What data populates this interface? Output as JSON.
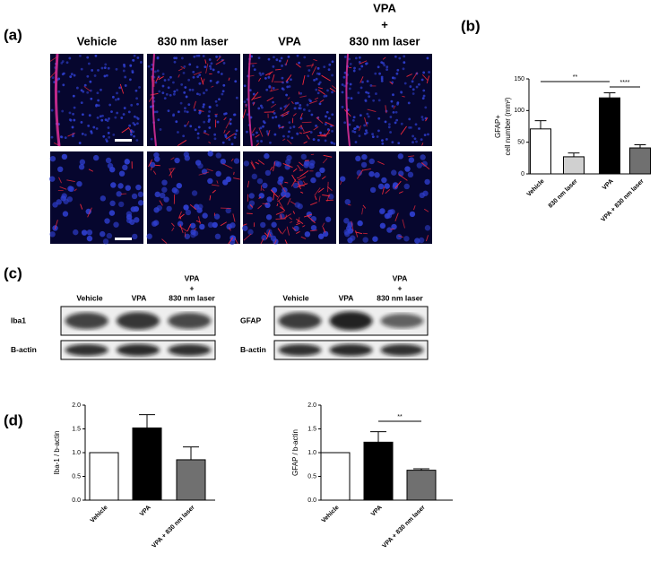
{
  "figure": {
    "panel_a": {
      "label": "(a)",
      "columns": [
        [
          "Vehicle"
        ],
        [
          "830 nm laser"
        ],
        [
          "VPA"
        ],
        [
          "VPA",
          "+",
          "830 nm laser"
        ]
      ]
    },
    "panel_b": {
      "label": "(b)"
    },
    "panel_c": {
      "label": "(c)",
      "blots": [
        {
          "columns": [
            [
              "Vehicle"
            ],
            [
              "VPA"
            ],
            [
              "VPA",
              "+",
              "830 nm laser"
            ]
          ],
          "rows": [
            "Iba1",
            "B-actin"
          ]
        },
        {
          "columns": [
            [
              "Vehicle"
            ],
            [
              "VPA"
            ],
            [
              "VPA",
              "+",
              "830 nm laser"
            ]
          ],
          "rows": [
            "GFAP",
            "B-actin"
          ]
        }
      ]
    },
    "panel_d": {
      "label": "(d)"
    }
  },
  "chart_data": [
    {
      "type": "bar",
      "ylabel": [
        "GFAP+",
        "cell number (mm²)"
      ],
      "categories": [
        "Vehicle",
        "830 nm laser",
        "VPA",
        "VPA + 830 nm laser"
      ],
      "values": [
        71,
        27,
        120,
        41
      ],
      "errors": [
        13,
        6,
        8,
        5
      ],
      "colors": [
        "#ffffff",
        "#d0d0d0",
        "#000000",
        "#707070"
      ],
      "ylim": [
        0,
        150
      ],
      "yticks": [
        0,
        50,
        100,
        150
      ],
      "annotations": [
        "**",
        "****"
      ]
    },
    {
      "type": "bar",
      "ylabel": [
        "Iba-1 / b-actin"
      ],
      "categories": [
        "Vehicle",
        "VPA",
        "VPA + 830 nm laser"
      ],
      "values": [
        1.0,
        1.52,
        0.85
      ],
      "errors": [
        null,
        0.28,
        0.27
      ],
      "colors": [
        "#ffffff",
        "#000000",
        "#707070"
      ],
      "ylim": [
        0,
        2.0
      ],
      "yticks": [
        {
          "value": 0,
          "label": "0.0"
        },
        {
          "value": 0.5,
          "label": "0.5"
        },
        {
          "value": 1,
          "label": "1.0"
        },
        {
          "value": 1.5,
          "label": "1.5"
        },
        {
          "value": 2,
          "label": "2.0"
        }
      ],
      "annotations": []
    },
    {
      "type": "bar",
      "ylabel": [
        "GFAP / b-actin"
      ],
      "categories": [
        "Vehicle",
        "VPA",
        "VPA + 830 nm laser"
      ],
      "values": [
        1.0,
        1.22,
        0.63
      ],
      "errors": [
        null,
        0.22,
        0.03
      ],
      "colors": [
        "#ffffff",
        "#000000",
        "#707070"
      ],
      "ylim": [
        0,
        2.0
      ],
      "yticks": [
        {
          "value": 0,
          "label": "0.0"
        },
        {
          "value": 0.5,
          "label": "0.5"
        },
        {
          "value": 1,
          "label": "1.0"
        },
        {
          "value": 1.5,
          "label": "1.5"
        },
        {
          "value": 2,
          "label": "2.0"
        }
      ],
      "annotations": [
        "**"
      ]
    }
  ]
}
